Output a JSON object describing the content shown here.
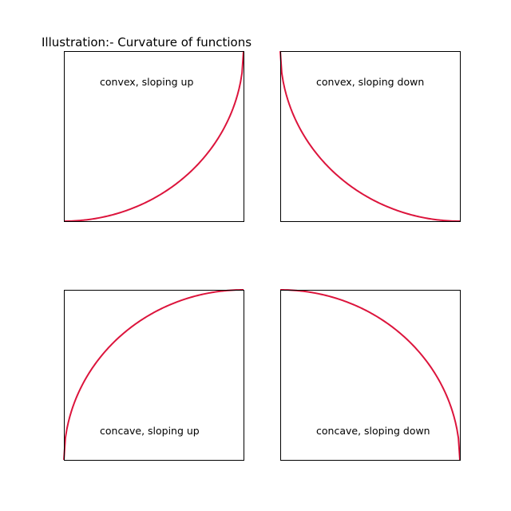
{
  "title": "Illustration:- Curvature of functions",
  "chart_data": [
    {
      "type": "line",
      "label": "convex, sloping up",
      "label_position": "top",
      "color": "#dc143c",
      "grid": false,
      "x": [
        0,
        0.1,
        0.2,
        0.3,
        0.4,
        0.5,
        0.6,
        0.7,
        0.8,
        0.9,
        0.95,
        1.0
      ],
      "y": [
        0,
        0.005,
        0.02,
        0.046,
        0.083,
        0.134,
        0.2,
        0.286,
        0.4,
        0.564,
        0.688,
        1.0
      ],
      "xlim": [
        0,
        1
      ],
      "ylim": [
        0,
        1
      ]
    },
    {
      "type": "line",
      "label": "convex, sloping down",
      "label_position": "top",
      "color": "#dc143c",
      "grid": false,
      "x": [
        0,
        0.05,
        0.1,
        0.2,
        0.3,
        0.4,
        0.5,
        0.6,
        0.7,
        0.8,
        0.9,
        1.0
      ],
      "y": [
        1.0,
        0.688,
        0.564,
        0.4,
        0.286,
        0.2,
        0.134,
        0.083,
        0.046,
        0.02,
        0.005,
        0
      ],
      "xlim": [
        0,
        1
      ],
      "ylim": [
        0,
        1
      ]
    },
    {
      "type": "line",
      "label": "concave, sloping up",
      "label_position": "bottom",
      "color": "#dc143c",
      "grid": false,
      "x": [
        0,
        0.05,
        0.1,
        0.2,
        0.3,
        0.4,
        0.5,
        0.6,
        0.7,
        0.8,
        0.9,
        1.0
      ],
      "y": [
        0,
        0.312,
        0.436,
        0.6,
        0.714,
        0.8,
        0.866,
        0.917,
        0.954,
        0.98,
        0.995,
        1.0
      ],
      "xlim": [
        0,
        1
      ],
      "ylim": [
        0,
        1
      ]
    },
    {
      "type": "line",
      "label": "concave, sloping down",
      "label_position": "bottom",
      "color": "#dc143c",
      "grid": false,
      "x": [
        0,
        0.1,
        0.2,
        0.3,
        0.4,
        0.5,
        0.6,
        0.7,
        0.8,
        0.9,
        0.95,
        1.0
      ],
      "y": [
        1.0,
        0.995,
        0.98,
        0.954,
        0.917,
        0.866,
        0.8,
        0.714,
        0.6,
        0.436,
        0.312,
        0
      ],
      "xlim": [
        0,
        1
      ],
      "ylim": [
        0,
        1
      ]
    }
  ]
}
